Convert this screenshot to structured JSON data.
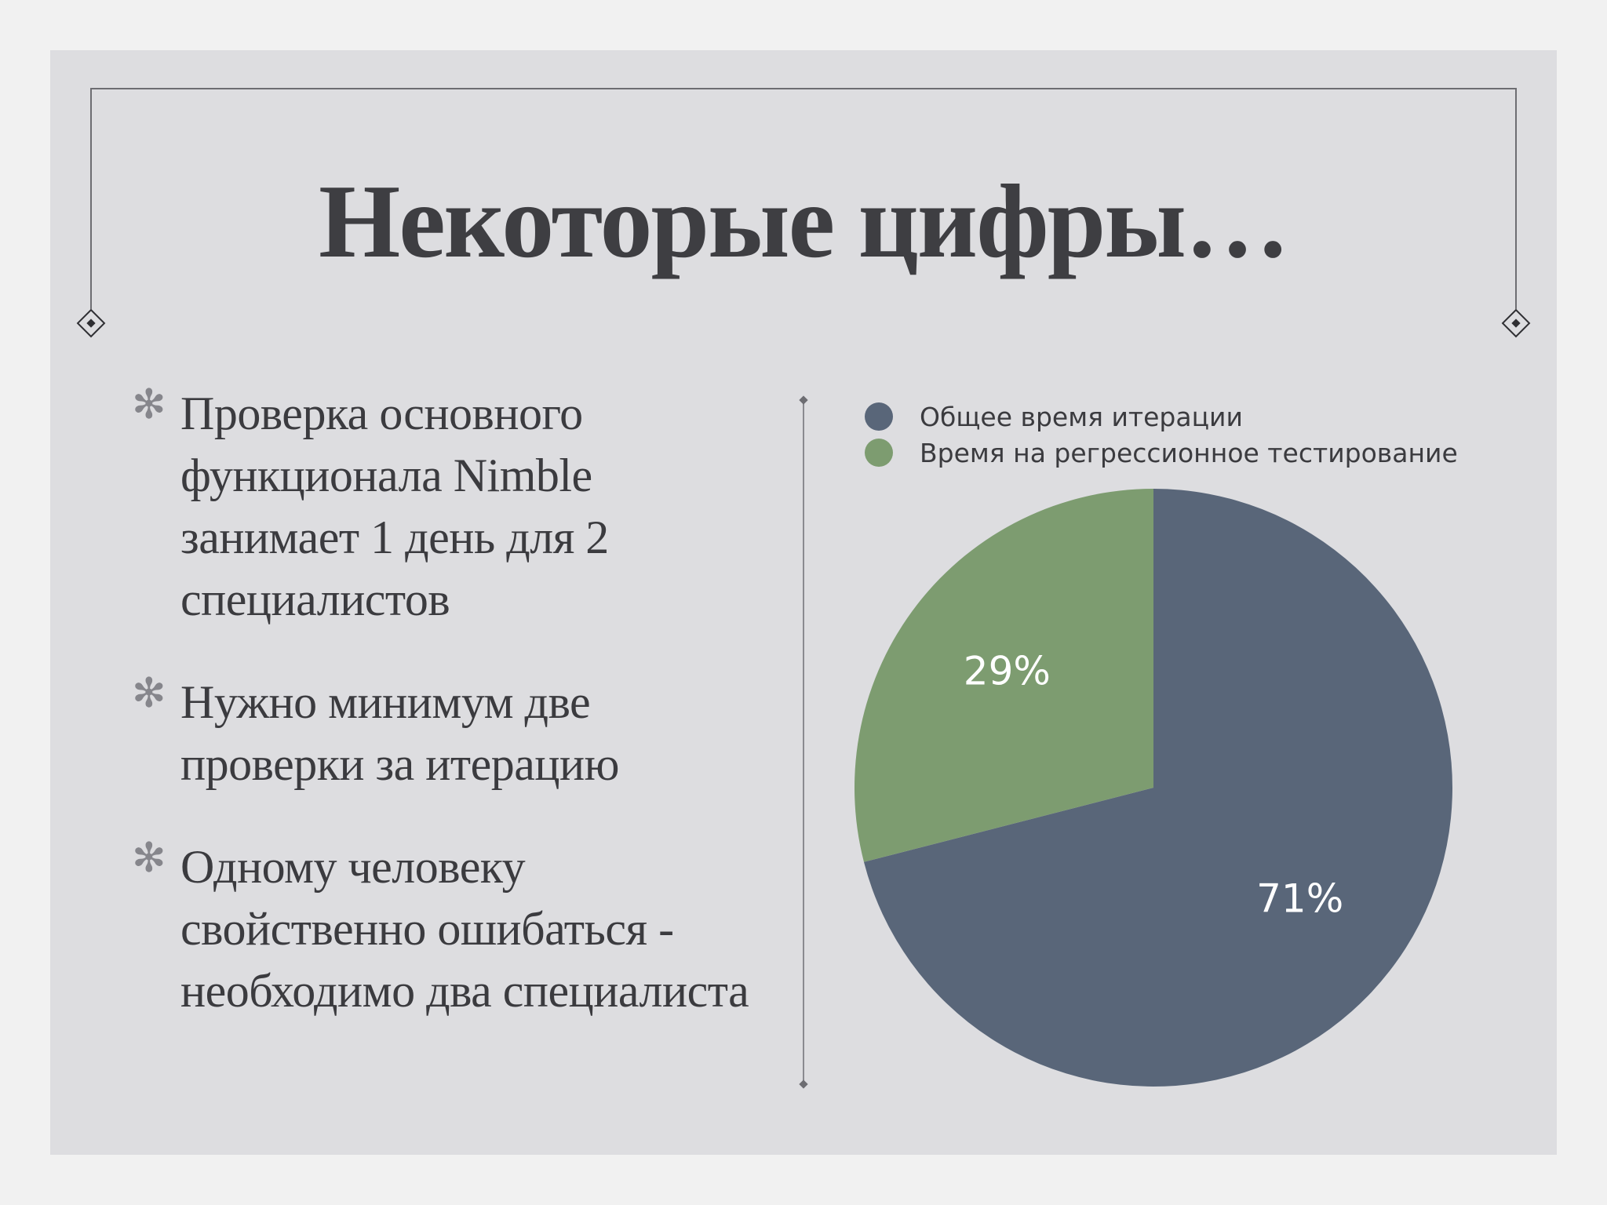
{
  "slide": {
    "title": "Некоторые цифры…",
    "bullet_marker": "✻",
    "bullets": [
      "Проверка основного функционала Nimble занимает 1 день для 2 специалистов",
      "Нужно минимум две проверки за итерацию",
      "Одному человеку свойственно ошибаться - необходимо два специалиста"
    ]
  },
  "chart_data": {
    "type": "pie",
    "series": [
      {
        "name": "Общее время итерации",
        "value": 71,
        "label": "71%",
        "color": "#596679"
      },
      {
        "name": "Время на регрессионное тестирование",
        "value": 29,
        "label": "29%",
        "color": "#7d9c70"
      }
    ],
    "legend_position": "top"
  }
}
